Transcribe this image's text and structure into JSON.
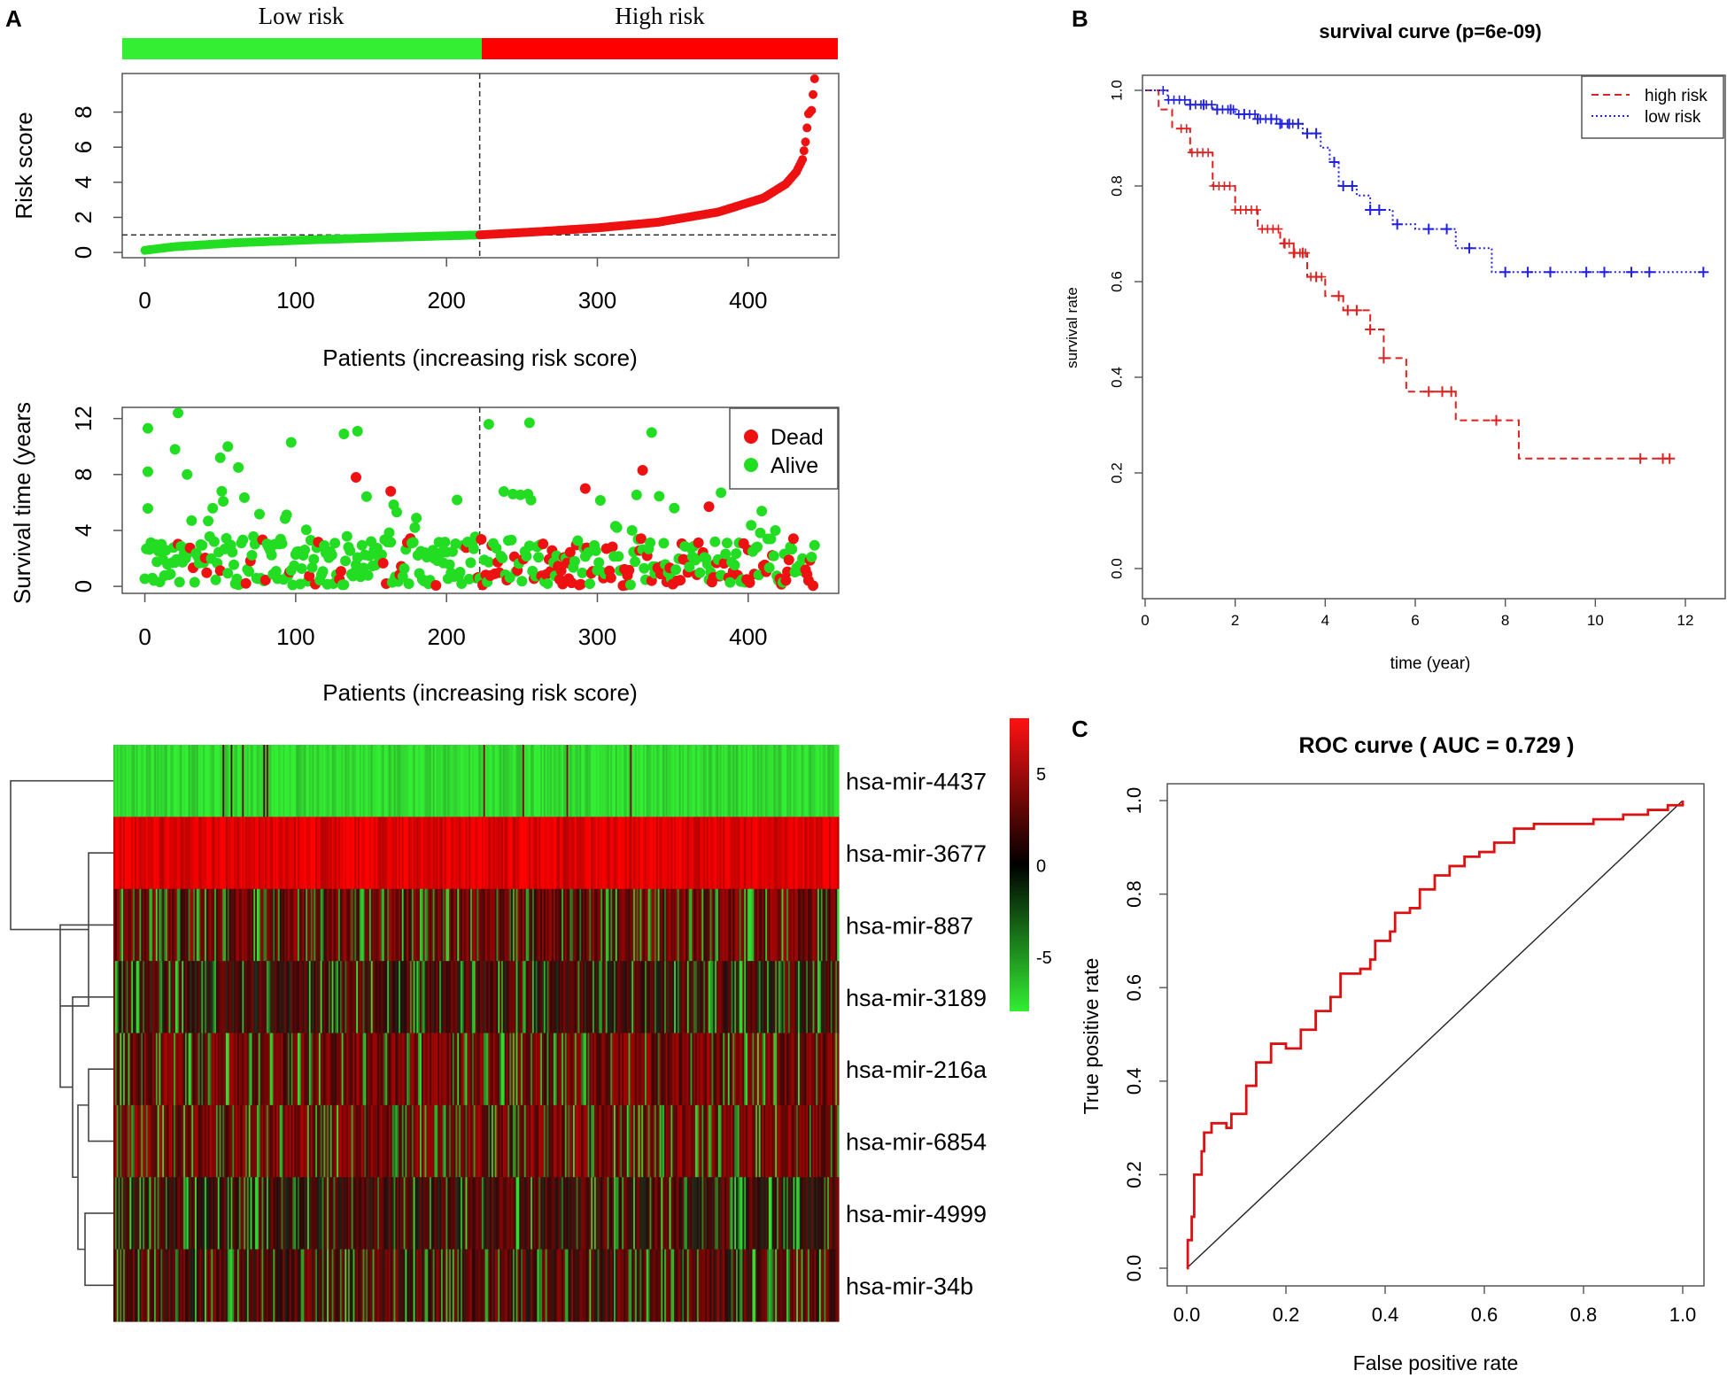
{
  "figure": {
    "panel_labels": [
      "A",
      "B",
      "C"
    ]
  },
  "chart_data": [
    {
      "id": "risk_score",
      "type": "scatter",
      "risk_bar": {
        "low_label": "Low risk",
        "high_label": "High risk",
        "low_color": "#33ee33",
        "high_color": "#ff0000"
      },
      "xlabel": "Patients (increasing risk score)",
      "ylabel": "Risk score",
      "xlim": [
        -15,
        460
      ],
      "ylim": [
        -0.3,
        10.2
      ],
      "xticks": [
        0,
        100,
        200,
        300,
        400
      ],
      "yticks": [
        0,
        2,
        4,
        6,
        8
      ],
      "n_patients": 445,
      "cutoff_index": 222,
      "cutoff_value": 1.0,
      "curve_knots": [
        [
          0,
          0.12
        ],
        [
          20,
          0.33
        ],
        [
          60,
          0.55
        ],
        [
          110,
          0.72
        ],
        [
          160,
          0.85
        ],
        [
          222,
          1.0
        ],
        [
          260,
          1.18
        ],
        [
          300,
          1.4
        ],
        [
          340,
          1.72
        ],
        [
          380,
          2.3
        ],
        [
          410,
          3.1
        ],
        [
          425,
          3.9
        ],
        [
          432,
          4.6
        ],
        [
          436,
          5.3
        ],
        [
          438,
          6.3
        ],
        [
          440,
          7.9
        ],
        [
          442,
          8.1
        ],
        [
          444,
          9.9
        ]
      ],
      "colors": {
        "low": "#22dd22",
        "high": "#ee1111"
      }
    },
    {
      "id": "survival_time",
      "type": "scatter",
      "xlabel": "Patients (increasing risk score)",
      "ylabel": "Survival time (years",
      "xlim": [
        -15,
        460
      ],
      "ylim": [
        -0.5,
        12.8
      ],
      "xticks": [
        0,
        100,
        200,
        300,
        400
      ],
      "yticks": [
        0,
        4,
        8,
        12
      ],
      "legend": [
        {
          "label": "Dead",
          "color": "#ee1111"
        },
        {
          "label": "Alive",
          "color": "#22dd22"
        }
      ],
      "cutoff_index": 222,
      "highlight_points": [
        {
          "x": 2,
          "y": 11.3,
          "status": "Alive"
        },
        {
          "x": 2,
          "y": 8.2,
          "status": "Alive"
        },
        {
          "x": 22,
          "y": 12.4,
          "status": "Alive"
        },
        {
          "x": 20,
          "y": 9.8,
          "status": "Alive"
        },
        {
          "x": 28,
          "y": 8.0,
          "status": "Alive"
        },
        {
          "x": 50,
          "y": 9.2,
          "status": "Alive"
        },
        {
          "x": 55,
          "y": 10.0,
          "status": "Alive"
        },
        {
          "x": 62,
          "y": 8.5,
          "status": "Alive"
        },
        {
          "x": 97,
          "y": 10.3,
          "status": "Alive"
        },
        {
          "x": 132,
          "y": 10.9,
          "status": "Alive"
        },
        {
          "x": 141,
          "y": 11.1,
          "status": "Alive"
        },
        {
          "x": 140,
          "y": 7.8,
          "status": "Dead"
        },
        {
          "x": 163,
          "y": 6.8,
          "status": "Dead"
        },
        {
          "x": 228,
          "y": 11.6,
          "status": "Alive"
        },
        {
          "x": 255,
          "y": 11.7,
          "status": "Alive"
        },
        {
          "x": 292,
          "y": 7.0,
          "status": "Dead"
        },
        {
          "x": 330,
          "y": 8.3,
          "status": "Dead"
        },
        {
          "x": 336,
          "y": 11.0,
          "status": "Alive"
        },
        {
          "x": 382,
          "y": 6.7,
          "status": "Alive"
        },
        {
          "x": 374,
          "y": 5.7,
          "status": "Dead"
        }
      ],
      "dead_rate_low": 0.14,
      "dead_rate_high": 0.42
    },
    {
      "id": "heatmap",
      "type": "heatmap",
      "rows": [
        "hsa-mir-4437",
        "hsa-mir-3677",
        "hsa-mir-887",
        "hsa-mir-3189",
        "hsa-mir-216a",
        "hsa-mir-6854",
        "hsa-mir-4999",
        "hsa-mir-34b"
      ],
      "n_columns": 445,
      "row_tendency": [
        -0.92,
        0.85,
        0.35,
        0.1,
        0.35,
        0.4,
        0.1,
        0.2
      ],
      "colorbar": {
        "ticks": [
          5,
          0,
          -5
        ],
        "range": [
          -8,
          8
        ],
        "low_color": "#33ee33",
        "mid_color": "#000000",
        "high_color": "#ff1111"
      }
    },
    {
      "id": "survival_curve",
      "type": "line",
      "title": "survival curve (p=6e-09)",
      "xlabel": "time (year)",
      "ylabel": "survival rate",
      "xlim": [
        0,
        12.6
      ],
      "ylim": [
        -0.02,
        1.04
      ],
      "xticks": [
        0,
        2,
        4,
        6,
        8,
        10,
        12
      ],
      "yticks": [
        0.0,
        0.2,
        0.4,
        0.6,
        0.8,
        1.0
      ],
      "legend": [
        {
          "label": "high risk",
          "color": "#dd2222"
        },
        {
          "label": "low risk",
          "color": "#2222dd"
        }
      ],
      "series": [
        {
          "name": "high risk",
          "steps": [
            [
              0,
              1.0
            ],
            [
              0.3,
              0.96
            ],
            [
              0.6,
              0.92
            ],
            [
              1.0,
              0.87
            ],
            [
              1.5,
              0.8
            ],
            [
              2.0,
              0.75
            ],
            [
              2.5,
              0.71
            ],
            [
              3.0,
              0.68
            ],
            [
              3.3,
              0.66
            ],
            [
              3.6,
              0.61
            ],
            [
              4.0,
              0.57
            ],
            [
              4.4,
              0.54
            ],
            [
              5.0,
              0.5
            ],
            [
              5.3,
              0.44
            ],
            [
              5.8,
              0.37
            ],
            [
              6.9,
              0.31
            ],
            [
              8.3,
              0.23
            ],
            [
              11.75,
              0.23
            ]
          ],
          "censor_times": [
            3.1,
            3.3,
            3.5,
            3.8,
            4.3,
            4.5,
            4.7,
            5.0,
            5.3,
            6.3,
            6.6,
            6.8,
            7.8,
            11.0,
            11.5,
            11.65
          ]
        },
        {
          "name": "low risk",
          "steps": [
            [
              0,
              1.0
            ],
            [
              0.5,
              0.98
            ],
            [
              1.0,
              0.97
            ],
            [
              1.5,
              0.96
            ],
            [
              2.0,
              0.95
            ],
            [
              2.5,
              0.94
            ],
            [
              3.0,
              0.93
            ],
            [
              3.5,
              0.91
            ],
            [
              3.9,
              0.88
            ],
            [
              4.1,
              0.85
            ],
            [
              4.3,
              0.8
            ],
            [
              4.7,
              0.78
            ],
            [
              5.0,
              0.75
            ],
            [
              5.5,
              0.72
            ],
            [
              6.0,
              0.71
            ],
            [
              6.9,
              0.67
            ],
            [
              7.7,
              0.62
            ],
            [
              12.4,
              0.62
            ]
          ],
          "censor_times": [
            1.0,
            1.3,
            1.6,
            1.9,
            2.2,
            2.5,
            2.8,
            3.0,
            3.2,
            3.4,
            3.6,
            3.8,
            4.2,
            4.4,
            4.6,
            5.0,
            5.2,
            5.6,
            6.3,
            6.7,
            7.2,
            8.0,
            8.5,
            9.0,
            9.8,
            10.2,
            10.8,
            11.2,
            12.4
          ]
        }
      ]
    },
    {
      "id": "roc_curve",
      "type": "line",
      "title": "ROC curve ( AUC =  0.729 )",
      "xlabel": "False positive rate",
      "ylabel": "True positive rate",
      "xlim": [
        -0.04,
        1.04
      ],
      "ylim": [
        -0.04,
        1.04
      ],
      "xticks": [
        0.0,
        0.2,
        0.4,
        0.6,
        0.8,
        1.0
      ],
      "yticks": [
        0.0,
        0.2,
        0.4,
        0.6,
        0.8,
        1.0
      ],
      "auc": 0.729,
      "roc_points": [
        [
          0,
          0
        ],
        [
          0.002,
          0.06
        ],
        [
          0.01,
          0.11
        ],
        [
          0.015,
          0.2
        ],
        [
          0.03,
          0.25
        ],
        [
          0.035,
          0.29
        ],
        [
          0.05,
          0.31
        ],
        [
          0.08,
          0.3
        ],
        [
          0.09,
          0.33
        ],
        [
          0.12,
          0.39
        ],
        [
          0.14,
          0.44
        ],
        [
          0.17,
          0.48
        ],
        [
          0.2,
          0.47
        ],
        [
          0.23,
          0.51
        ],
        [
          0.26,
          0.55
        ],
        [
          0.29,
          0.58
        ],
        [
          0.31,
          0.63
        ],
        [
          0.35,
          0.64
        ],
        [
          0.37,
          0.66
        ],
        [
          0.38,
          0.7
        ],
        [
          0.41,
          0.72
        ],
        [
          0.42,
          0.76
        ],
        [
          0.45,
          0.77
        ],
        [
          0.47,
          0.81
        ],
        [
          0.5,
          0.84
        ],
        [
          0.53,
          0.86
        ],
        [
          0.56,
          0.88
        ],
        [
          0.59,
          0.89
        ],
        [
          0.62,
          0.91
        ],
        [
          0.66,
          0.94
        ],
        [
          0.7,
          0.95
        ],
        [
          0.76,
          0.95
        ],
        [
          0.82,
          0.96
        ],
        [
          0.88,
          0.97
        ],
        [
          0.93,
          0.98
        ],
        [
          0.97,
          0.99
        ],
        [
          1.0,
          1.0
        ]
      ],
      "diagonal": true
    }
  ]
}
